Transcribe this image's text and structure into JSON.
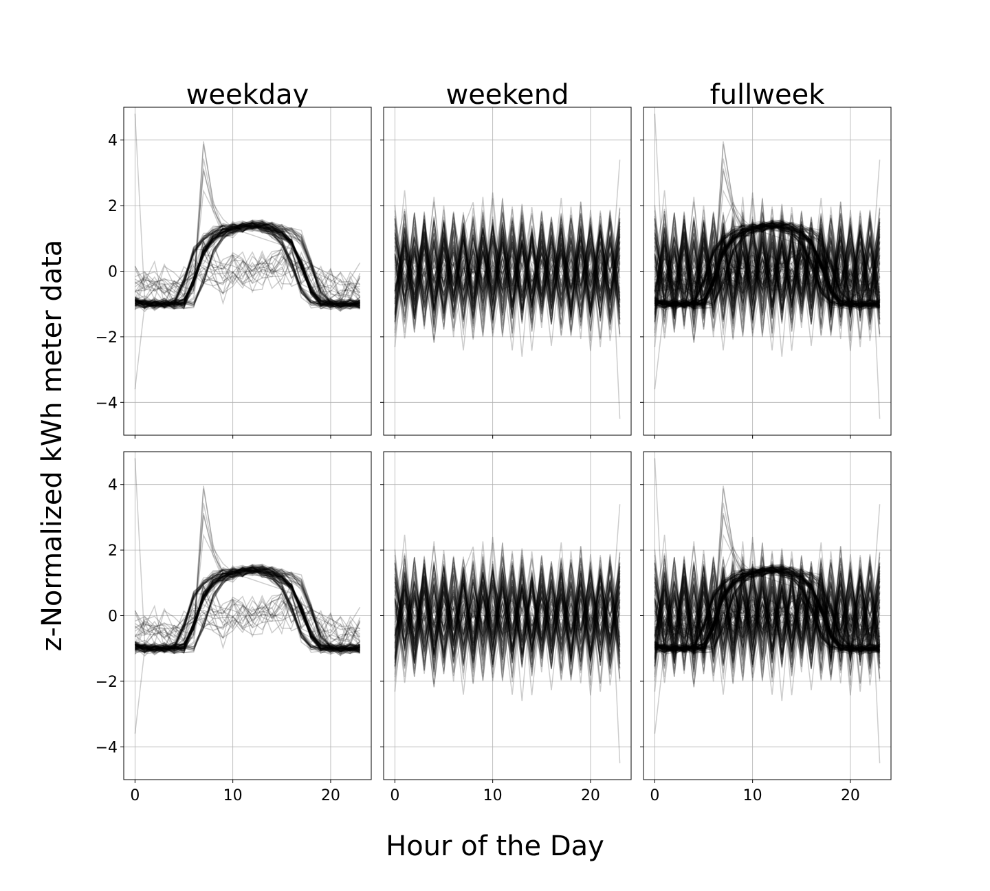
{
  "chart_data": {
    "type": "line",
    "supxlabel": "Hour of the Day",
    "supylabel": "z-Normalized kWh meter data",
    "layout": {
      "rows": 2,
      "cols": 3,
      "sharex": true,
      "sharey": true
    },
    "column_titles": [
      "weekday",
      "weekend",
      "fullweek"
    ],
    "xlim": [
      -1.15,
      24.15
    ],
    "ylim": [
      -5,
      5
    ],
    "xticks": [
      0,
      10,
      20
    ],
    "yticks": [
      -4,
      -2,
      0,
      2,
      4
    ],
    "ytick_labels": [
      "−4",
      "−2",
      "0",
      "2",
      "4"
    ],
    "grid": true,
    "line_color": "#000000",
    "line_alpha": 0.2,
    "hours": [
      0,
      1,
      2,
      3,
      4,
      5,
      6,
      7,
      8,
      9,
      10,
      11,
      12,
      13,
      14,
      15,
      16,
      17,
      18,
      19,
      20,
      21,
      22,
      23
    ],
    "profiles": {
      "weekday_typical": [
        -0.95,
        -1.0,
        -1.0,
        -1.0,
        -1.0,
        -0.98,
        -0.3,
        0.6,
        1.0,
        1.2,
        1.3,
        1.35,
        1.4,
        1.38,
        1.3,
        1.15,
        0.9,
        0.2,
        -0.6,
        -0.95,
        -1.0,
        -1.0,
        -1.0,
        -1.0
      ],
      "weekday_spiky": [
        -0.9,
        -1.0,
        -1.0,
        -1.0,
        -1.0,
        -0.9,
        -0.5,
        4.0,
        2.0,
        1.3,
        1.4,
        1.3,
        1.4,
        1.5,
        1.4,
        1.3,
        1.2,
        1.1,
        0.3,
        -0.8,
        -1.0,
        -1.0,
        -1.0,
        -1.0
      ],
      "weekday_flat": [
        -0.5,
        -0.4,
        -0.3,
        -0.4,
        -0.5,
        -0.4,
        0.1,
        0.2,
        0.0,
        -0.1,
        0.1,
        0.0,
        0.0,
        0.1,
        0.1,
        0.2,
        0.3,
        0.0,
        -0.2,
        -0.3,
        -0.5,
        -0.6,
        -0.6,
        -0.5
      ],
      "weekday_outlier": [
        4.8,
        -0.9,
        -1.0,
        -1.0,
        -1.0,
        -1.0,
        -0.8,
        1.0,
        1.2,
        1.3,
        1.3,
        1.2,
        1.1,
        1.0,
        0.9,
        0.8,
        0.7,
        0.3,
        -0.5,
        -0.9,
        -1.0,
        -1.0,
        -1.0,
        -1.0
      ],
      "weekday_low_start": [
        -3.6,
        -1.0,
        -1.0,
        -1.0,
        -1.0,
        -1.0,
        -0.6,
        0.8,
        1.1,
        1.2,
        1.3,
        1.3,
        1.3,
        1.2,
        1.1,
        1.0,
        0.8,
        0.2,
        -0.7,
        -1.0,
        -1.0,
        -1.0,
        -1.0,
        -1.0
      ],
      "weekend_oscillating": [
        0.6,
        1.9,
        -0.6,
        1.2,
        -0.8,
        1.5,
        -0.7,
        1.3,
        2.1,
        -0.5,
        2.4,
        -0.6,
        1.6,
        -0.8,
        1.1,
        -0.7,
        1.3,
        -0.9,
        1.0,
        -0.8,
        1.4,
        -1.0,
        1.8,
        -4.5
      ],
      "weekend_mixed": [
        -1.8,
        0.7,
        -0.4,
        0.9,
        -1.2,
        0.5,
        -0.3,
        1.0,
        -0.9,
        0.6,
        -0.5,
        0.8,
        -1.3,
        0.4,
        -0.6,
        1.2,
        -0.8,
        0.3,
        -1.1,
        0.7,
        -0.4,
        0.9,
        -0.7,
        3.4
      ]
    }
  }
}
